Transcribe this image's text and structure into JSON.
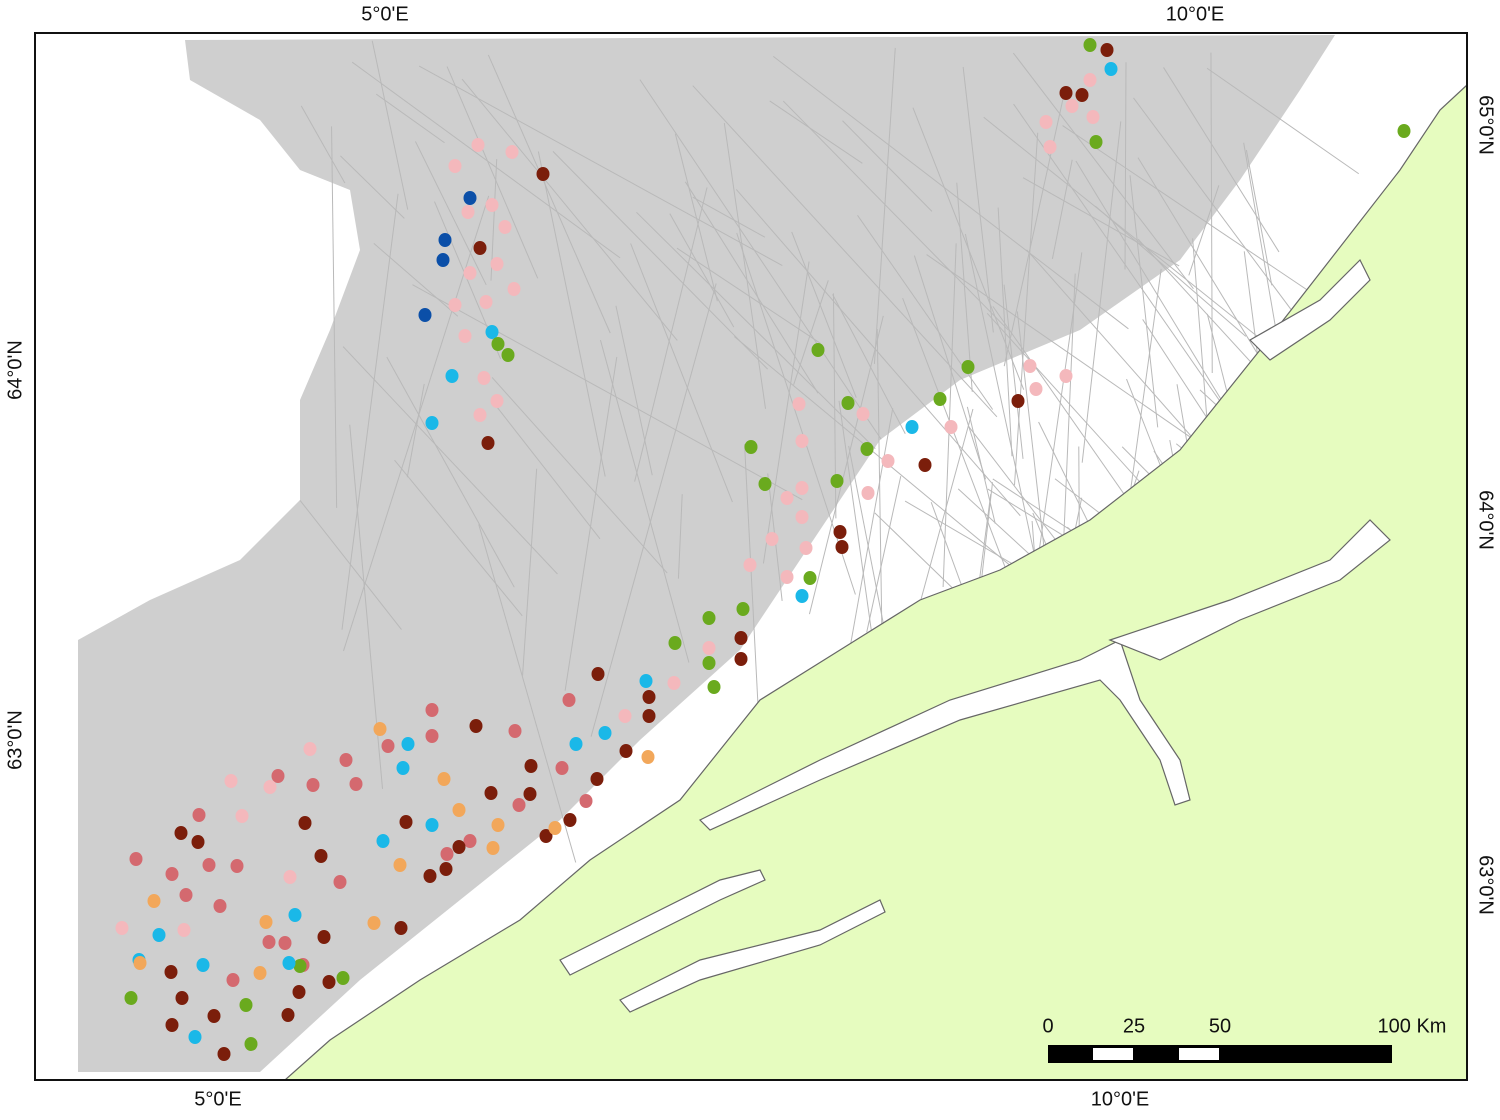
{
  "map": {
    "graticule_labels": {
      "top": [
        "5°0'E",
        "10°0'E"
      ],
      "bottom": [
        "5°0'E",
        "10°0'E"
      ],
      "left": [
        "64°0'N",
        "63°0'N"
      ],
      "right": [
        "65°0'N",
        "64°0'N",
        "63°0'N"
      ]
    },
    "scale_bar": {
      "labels": [
        "0",
        "25",
        "50",
        "100 Km"
      ]
    }
  }
}
